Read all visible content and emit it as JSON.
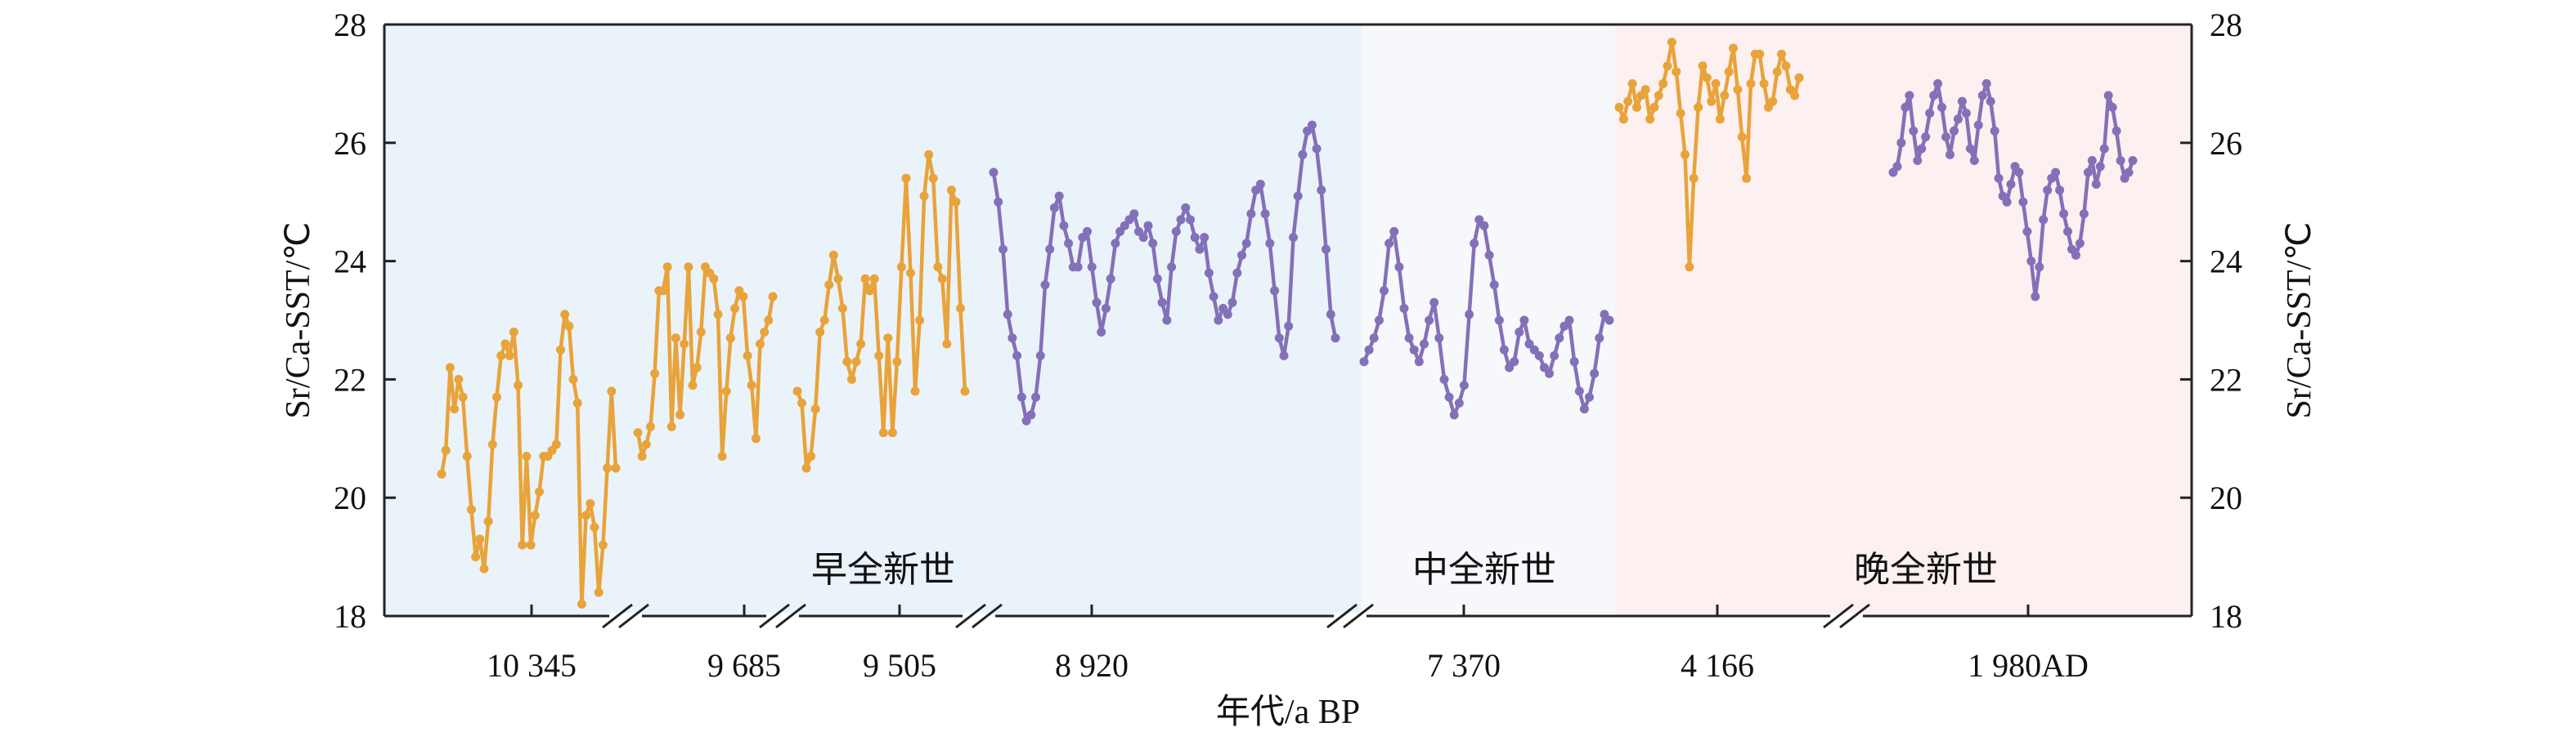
{
  "chart_data": {
    "type": "line",
    "title": "",
    "xlabel": "年代/a BP",
    "ylabel_left": "Sr/Ca-SST/℃",
    "ylabel_right": "Sr/Ca-SST/℃",
    "ylim": [
      18,
      28
    ],
    "y_ticks": [
      "18",
      "20",
      "22",
      "24",
      "26",
      "28"
    ],
    "x_axis": "broken (discontinuous) age axis, break marks between segments",
    "x_tick_labels": [
      "10 345",
      "9 685",
      "9 505",
      "8 920",
      "7 370",
      "4 166",
      "1 980AD"
    ],
    "grid": false,
    "legend": "none",
    "periods": [
      {
        "label": "早全新世",
        "color": "#eaf3fa"
      },
      {
        "label": "中全新世",
        "color": "#f6f8fb"
      },
      {
        "label": "晚全新世",
        "color": "#fdf0f0"
      }
    ],
    "colors": {
      "fossil": "#e8a33a",
      "modern": "#8470b8"
    },
    "segments": [
      {
        "tick_label": "10 345",
        "color": "fossil",
        "y": [
          20.4,
          20.8,
          22.2,
          21.5,
          22.0,
          21.7,
          20.7,
          19.8,
          19.0,
          19.3,
          18.8,
          19.6,
          20.9,
          21.7,
          22.4,
          22.6,
          22.4,
          22.8,
          21.9,
          19.2,
          20.7,
          19.2,
          19.7,
          20.1,
          20.7,
          20.7,
          20.8,
          20.9,
          22.5,
          23.1,
          22.9,
          22.0,
          21.6,
          18.2,
          19.7,
          19.9,
          19.5,
          18.4,
          19.2,
          20.5,
          21.8,
          20.5
        ]
      },
      {
        "tick_label": "9 685",
        "color": "fossil",
        "y": [
          21.1,
          20.7,
          20.9,
          21.2,
          22.1,
          23.5,
          23.5,
          23.9,
          21.2,
          22.7,
          21.4,
          22.6,
          23.9,
          21.9,
          22.2,
          22.8,
          23.9,
          23.8,
          23.7,
          23.1,
          20.7,
          21.8,
          22.7,
          23.2,
          23.5,
          23.4,
          22.4,
          21.9,
          21.0,
          22.6,
          22.8,
          23.0,
          23.4
        ]
      },
      {
        "tick_label": "9 505",
        "color": "fossil",
        "y": [
          21.8,
          21.6,
          20.5,
          20.7,
          21.5,
          22.8,
          23.0,
          23.6,
          24.1,
          23.7,
          23.2,
          22.3,
          22.0,
          22.3,
          22.6,
          23.7,
          23.5,
          23.7,
          22.4,
          21.1,
          22.7,
          21.1,
          22.3,
          23.9,
          25.4,
          23.8,
          21.8,
          23.0,
          25.1,
          25.8,
          25.4,
          23.9,
          23.7,
          22.6,
          25.2,
          25.0,
          23.2,
          21.8
        ]
      },
      {
        "tick_label": "8 920",
        "color": "modern",
        "y": [
          25.5,
          25.0,
          24.2,
          23.1,
          22.7,
          22.4,
          21.7,
          21.3,
          21.4,
          21.7,
          22.4,
          23.6,
          24.2,
          24.9,
          25.1,
          24.6,
          24.3,
          23.9,
          23.9,
          24.4,
          24.5,
          23.9,
          23.3,
          22.8,
          23.2,
          23.7,
          24.3,
          24.5,
          24.6,
          24.7,
          24.8,
          24.5,
          24.4,
          24.6,
          24.3,
          23.7,
          23.3,
          23.0,
          23.9,
          24.5,
          24.7,
          24.9,
          24.7,
          24.4,
          24.2,
          24.4,
          23.8,
          23.4,
          23.0,
          23.2,
          23.1,
          23.3,
          23.8,
          24.1,
          24.3,
          24.8,
          25.2,
          25.3,
          24.8,
          24.3,
          23.5,
          22.7,
          22.4,
          22.9,
          24.4,
          25.1,
          25.8,
          26.2,
          26.3,
          25.9,
          25.2,
          24.2,
          23.1,
          22.7
        ]
      },
      {
        "tick_label": "7 370",
        "color": "modern",
        "y": [
          22.3,
          22.5,
          22.7,
          23.0,
          23.5,
          24.3,
          24.5,
          23.9,
          23.2,
          22.7,
          22.5,
          22.3,
          22.6,
          23.0,
          23.3,
          22.7,
          22.0,
          21.7,
          21.4,
          21.6,
          21.9,
          23.1,
          24.3,
          24.7,
          24.6,
          24.1,
          23.6,
          23.0,
          22.5,
          22.2,
          22.3,
          22.8,
          23.0,
          22.6,
          22.5,
          22.4,
          22.2,
          22.1,
          22.4,
          22.7,
          22.9,
          23.0,
          22.3,
          21.8,
          21.5,
          21.7,
          22.1,
          22.7,
          23.1,
          23.0
        ]
      },
      {
        "tick_label": "4 166",
        "color": "fossil",
        "y": [
          26.6,
          26.4,
          26.7,
          27.0,
          26.6,
          26.8,
          26.9,
          26.4,
          26.6,
          26.8,
          27.0,
          27.3,
          27.7,
          27.2,
          26.5,
          25.8,
          23.9,
          25.4,
          26.6,
          27.3,
          27.1,
          26.7,
          27.0,
          26.4,
          26.8,
          27.2,
          27.6,
          26.9,
          26.1,
          25.4,
          27.0,
          27.5,
          27.5,
          27.0,
          26.6,
          26.7,
          27.2,
          27.5,
          27.3,
          26.9,
          26.8,
          27.1
        ]
      },
      {
        "tick_label": "1 980AD",
        "color": "modern",
        "y": [
          25.5,
          25.6,
          26.0,
          26.6,
          26.8,
          26.2,
          25.7,
          25.9,
          26.1,
          26.5,
          26.8,
          27.0,
          26.6,
          26.1,
          25.8,
          26.2,
          26.4,
          26.7,
          26.5,
          25.9,
          25.7,
          26.3,
          26.8,
          27.0,
          26.7,
          26.2,
          25.4,
          25.1,
          25.0,
          25.3,
          25.6,
          25.5,
          25.0,
          24.5,
          24.0,
          23.4,
          23.9,
          24.7,
          25.2,
          25.4,
          25.5,
          25.2,
          24.8,
          24.5,
          24.2,
          24.1,
          24.3,
          24.8,
          25.5,
          25.7,
          25.3,
          25.6,
          25.9,
          26.8,
          26.6,
          26.2,
          25.7,
          25.4,
          25.5,
          25.7
        ]
      }
    ]
  }
}
